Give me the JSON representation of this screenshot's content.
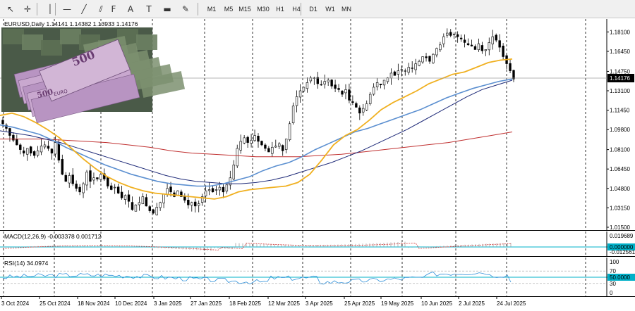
{
  "toolbar": {
    "tools": [
      {
        "name": "cursor-icon",
        "glyph": "↖"
      },
      {
        "name": "crosshair-icon",
        "glyph": "✛"
      },
      {
        "name": "vertical-line-icon",
        "glyph": "│"
      },
      {
        "name": "horizontal-line-icon",
        "glyph": "—"
      },
      {
        "name": "trendline-icon",
        "glyph": "╱"
      },
      {
        "name": "equidistant-channel-icon",
        "glyph": "⫽"
      },
      {
        "name": "fibonacci-icon",
        "glyph": "F"
      },
      {
        "name": "text-icon",
        "glyph": "A"
      },
      {
        "name": "text-label-icon",
        "glyph": "T"
      },
      {
        "name": "rectangle-icon",
        "glyph": "▬"
      },
      {
        "name": "shapes-dropdown-icon",
        "glyph": "✎"
      }
    ],
    "timeframes": [
      "M1",
      "M5",
      "M15",
      "M30",
      "H1",
      "H4",
      "D1",
      "W1",
      "MN"
    ]
  },
  "symbol_info": "EURUSD,Daily  1.14141 1.14382 1.13933 1.14176",
  "macd_label": "MACD(12,26,9) -0.003378 0.001712",
  "rsi_label": "RSI(14) 34.0974",
  "colors": {
    "bull": "#000000",
    "bear": "#000000",
    "ma_fast": "#f0b020",
    "ma_mid": "#5b8fd0",
    "ma_slow": "#1e2a78",
    "ma_long": "#c03030",
    "macd_hist": "#a0a0a0",
    "macd_signal": "#d03030",
    "rsi_line": "#2f8fd8",
    "level_line": "#00b0c8"
  },
  "chart_data": [
    {
      "type": "candlestick",
      "symbol": "EURUSD",
      "timeframe": "Daily",
      "last_price": 1.14176,
      "last_price_label": "1.14176",
      "ylim": [
        1.012,
        1.192
      ],
      "y_ticks": [
        "1.18100",
        "1.16450",
        "1.14750",
        "1.13100",
        "1.11450",
        "1.09800",
        "1.08100",
        "1.06450",
        "1.04800",
        "1.03150",
        "1.01500"
      ],
      "y_tick_values": [
        1.181,
        1.1645,
        1.1475,
        1.131,
        1.1145,
        1.098,
        1.081,
        1.0645,
        1.048,
        1.0315,
        1.015
      ],
      "x_labels": [
        "3 Oct 2024",
        "25 Oct 2024",
        "18 Nov 2024",
        "10 Dec 2024",
        "3 Jan 2025",
        "27 Jan 2025",
        "18 Feb 2025",
        "12 Mar 2025",
        "3 Apr 2025",
        "25 Apr 2025",
        "19 May 2025",
        "10 Jun 2025",
        "2 Jul 2025",
        "24 Jul 2025"
      ],
      "close_path": [
        1.103,
        1.099,
        1.093,
        1.089,
        1.085,
        1.081,
        1.078,
        1.082,
        1.078,
        1.076,
        1.08,
        1.084,
        1.085,
        1.082,
        1.078,
        1.087,
        1.072,
        1.06,
        1.054,
        1.059,
        1.052,
        1.048,
        1.045,
        1.052,
        1.062,
        1.054,
        1.057,
        1.056,
        1.06,
        1.056,
        1.05,
        1.047,
        1.049,
        1.044,
        1.04,
        1.042,
        1.037,
        1.03,
        1.034,
        1.036,
        1.041,
        1.033,
        1.029,
        1.027,
        1.032,
        1.036,
        1.043,
        1.048,
        1.045,
        1.041,
        1.046,
        1.041,
        1.038,
        1.034,
        1.036,
        1.033,
        1.035,
        1.041,
        1.046,
        1.047,
        1.045,
        1.047,
        1.049,
        1.045,
        1.051,
        1.057,
        1.068,
        1.082,
        1.088,
        1.091,
        1.087,
        1.089,
        1.093,
        1.088,
        1.085,
        1.082,
        1.079,
        1.083,
        1.084,
        1.086,
        1.08,
        1.09,
        1.103,
        1.118,
        1.126,
        1.131,
        1.134,
        1.138,
        1.142,
        1.142,
        1.137,
        1.136,
        1.139,
        1.14,
        1.135,
        1.133,
        1.132,
        1.128,
        1.132,
        1.123,
        1.121,
        1.117,
        1.112,
        1.116,
        1.12,
        1.128,
        1.134,
        1.138,
        1.136,
        1.14,
        1.142,
        1.146,
        1.144,
        1.148,
        1.149,
        1.148,
        1.151,
        1.15,
        1.154,
        1.156,
        1.16,
        1.159,
        1.156,
        1.162,
        1.167,
        1.17,
        1.177,
        1.18,
        1.178,
        1.179,
        1.177,
        1.175,
        1.172,
        1.17,
        1.169,
        1.166,
        1.171,
        1.165,
        1.166,
        1.172,
        1.177,
        1.174,
        1.168,
        1.16,
        1.154,
        1.148,
        1.141
      ],
      "ma_fast": [
        1.11,
        1.112,
        1.109,
        1.104,
        1.098,
        1.091,
        1.082,
        1.073,
        1.065,
        1.058,
        1.053,
        1.049,
        1.046,
        1.044,
        1.043,
        1.042,
        1.041,
        1.04,
        1.039,
        1.041,
        1.045,
        1.047,
        1.048,
        1.049,
        1.05,
        1.053,
        1.06,
        1.072,
        1.085,
        1.093,
        1.098,
        1.106,
        1.115,
        1.121,
        1.126,
        1.131,
        1.137,
        1.141,
        1.145,
        1.147,
        1.151,
        1.155,
        1.157,
        1.158
      ],
      "ma_mid": [
        1.102,
        1.1,
        1.097,
        1.094,
        1.089,
        1.083,
        1.078,
        1.073,
        1.068,
        1.064,
        1.06,
        1.057,
        1.054,
        1.052,
        1.051,
        1.05,
        1.05,
        1.052,
        1.055,
        1.058,
        1.063,
        1.067,
        1.07,
        1.075,
        1.081,
        1.086,
        1.091,
        1.096,
        1.099,
        1.103,
        1.107,
        1.111,
        1.115,
        1.12,
        1.125,
        1.129,
        1.133,
        1.136,
        1.139,
        1.141
      ],
      "ma_slow": [
        1.097,
        1.095,
        1.093,
        1.09,
        1.087,
        1.083,
        1.079,
        1.075,
        1.071,
        1.067,
        1.063,
        1.059,
        1.056,
        1.054,
        1.053,
        1.052,
        1.052,
        1.053,
        1.055,
        1.058,
        1.062,
        1.066,
        1.07,
        1.075,
        1.08,
        1.086,
        1.092,
        1.098,
        1.105,
        1.112,
        1.119,
        1.126,
        1.132,
        1.136,
        1.14
      ],
      "ma_long": [
        1.09,
        1.09,
        1.09,
        1.089,
        1.088,
        1.087,
        1.085,
        1.083,
        1.08,
        1.078,
        1.077,
        1.076,
        1.075,
        1.075,
        1.075,
        1.076,
        1.077,
        1.079,
        1.081,
        1.083,
        1.085,
        1.087,
        1.09,
        1.093,
        1.096
      ]
    },
    {
      "type": "macd",
      "params": "12,26,9",
      "macd": -0.003378,
      "signal": 0.001712,
      "y_ticks": [
        "0.019689",
        "0.000000",
        "-0.012561"
      ],
      "zero_label": "0.000000"
    },
    {
      "type": "rsi",
      "period": 14,
      "value": 34.0974,
      "ylim": [
        0,
        100
      ],
      "y_ticks": [
        "100",
        "70",
        "50",
        "30",
        "0"
      ],
      "level_label": "50.0000"
    }
  ]
}
